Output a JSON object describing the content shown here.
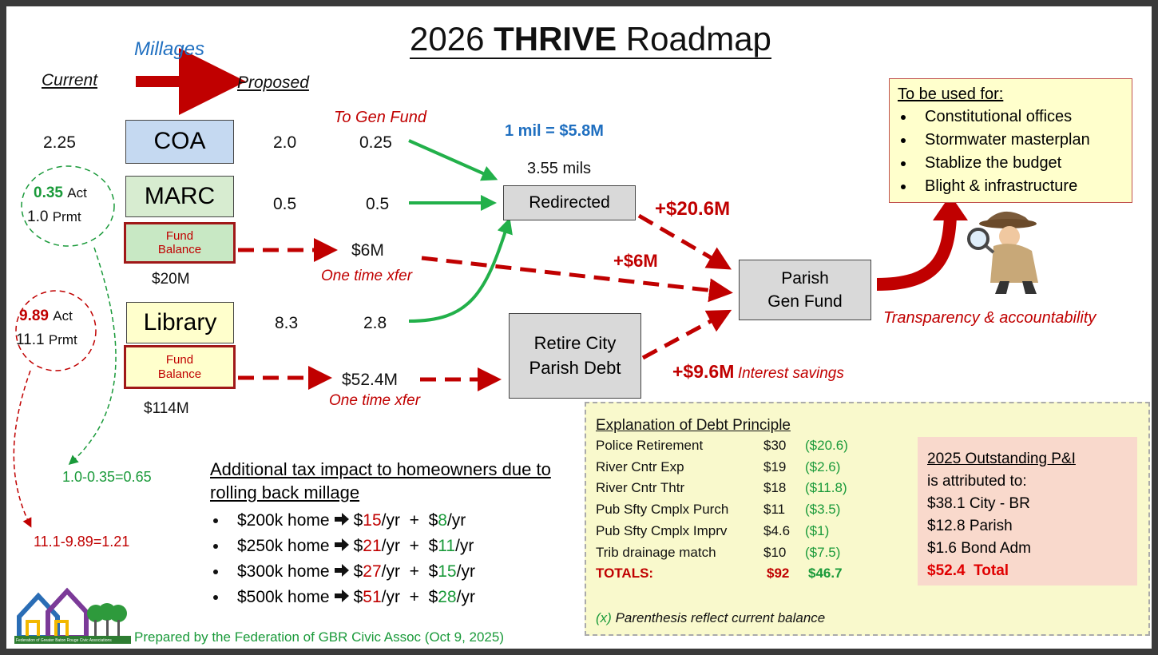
{
  "title": {
    "pre": "2026",
    "bold": "THRIVE",
    "post": "Roadmap"
  },
  "millages": {
    "heading": "Millages",
    "current": "Current",
    "proposed": "Proposed"
  },
  "rows": [
    {
      "current": "2.25",
      "name": "COA",
      "proposed": "2.0",
      "redirect": "0.25"
    },
    {
      "name": "MARC",
      "proposed": "0.5",
      "redirect": "0.5"
    },
    {
      "name": "Library",
      "proposed": "8.3",
      "redirect": "2.8"
    }
  ],
  "circles": [
    {
      "act": "0.35",
      "act_label": "Act",
      "prmt": "1.0",
      "prmt_label": "Prmt",
      "calc": "1.0-0.35=0.65"
    },
    {
      "act": "9.89",
      "act_label": "Act",
      "prmt": "11.1",
      "prmt_label": "Prmt",
      "calc": "11.1-9.89=1.21"
    }
  ],
  "fund_balances": [
    {
      "label": "Fund Balance",
      "total": "$20M",
      "transfer": "$6M",
      "note": "One time xfer"
    },
    {
      "label": "Fund Balance",
      "total": "$114M",
      "transfer": "$52.4M",
      "note": "One time xfer"
    }
  ],
  "flow": {
    "to_gen_fund": "To Gen Fund",
    "rate": "1 mil = $5.8M",
    "mils": "3.55 mils",
    "redirected": "Redirected",
    "retire": "Retire City Parish Debt",
    "parish": "Parish Gen Fund",
    "plus_redirect": "+$20.6M",
    "plus_fund": "+$6M",
    "plus_savings": "+$9.6M",
    "savings_note": "Interest savings",
    "transparency": "Transparency & accountability"
  },
  "uses": {
    "heading": "To be used for:",
    "items": [
      "Constitutional offices",
      "Stormwater masterplan",
      "Stablize the budget",
      "Blight & infrastructure"
    ]
  },
  "impact": {
    "heading": "Additional tax impact to homeowners due to rolling back millage",
    "currency": "$",
    "mid": "/yr  +  $",
    "suffix": "/yr",
    "rows": [
      {
        "home": "$200k home",
        "a": "15",
        "b": "8"
      },
      {
        "home": "$250k home",
        "a": "21",
        "b": "11"
      },
      {
        "home": "$300k home",
        "a": "27",
        "b": "15"
      },
      {
        "home": "$500k home",
        "a": "51",
        "b": "28"
      }
    ]
  },
  "debt": {
    "heading": "Explanation of Debt Principle",
    "rows": [
      [
        "Police Retirement",
        "$30",
        "($20.6)"
      ],
      [
        "River Cntr Exp",
        "$19",
        "($2.6)"
      ],
      [
        "River Cntr Thtr",
        "$18",
        "($11.8)"
      ],
      [
        "Pub Sfty Cmplx Purch",
        "$11",
        "($3.5)"
      ],
      [
        "Pub Sfty Cmplx Imprv",
        "$4.6",
        "($1)"
      ],
      [
        "Trib drainage match",
        "$10",
        "($7.5)"
      ]
    ],
    "totals": [
      "TOTALS:",
      "$92",
      "$46.7"
    ],
    "note_marker": "(x)",
    "note": "Parenthesis reflect current balance"
  },
  "outstanding": {
    "heading": "2025 Outstanding P&I",
    "subheading": "is attributed to:",
    "items": [
      "$38.1 City - BR",
      "$12.8 Parish",
      "$1.6 Bond Adm"
    ],
    "total": "$52.4  Total"
  },
  "footer": {
    "prepared": "Prepared by the Federation of GBR Civic Assoc (Oct 9, 2025)",
    "logo_text": "Federation of Greater Baton Rouge Civic Associations"
  }
}
